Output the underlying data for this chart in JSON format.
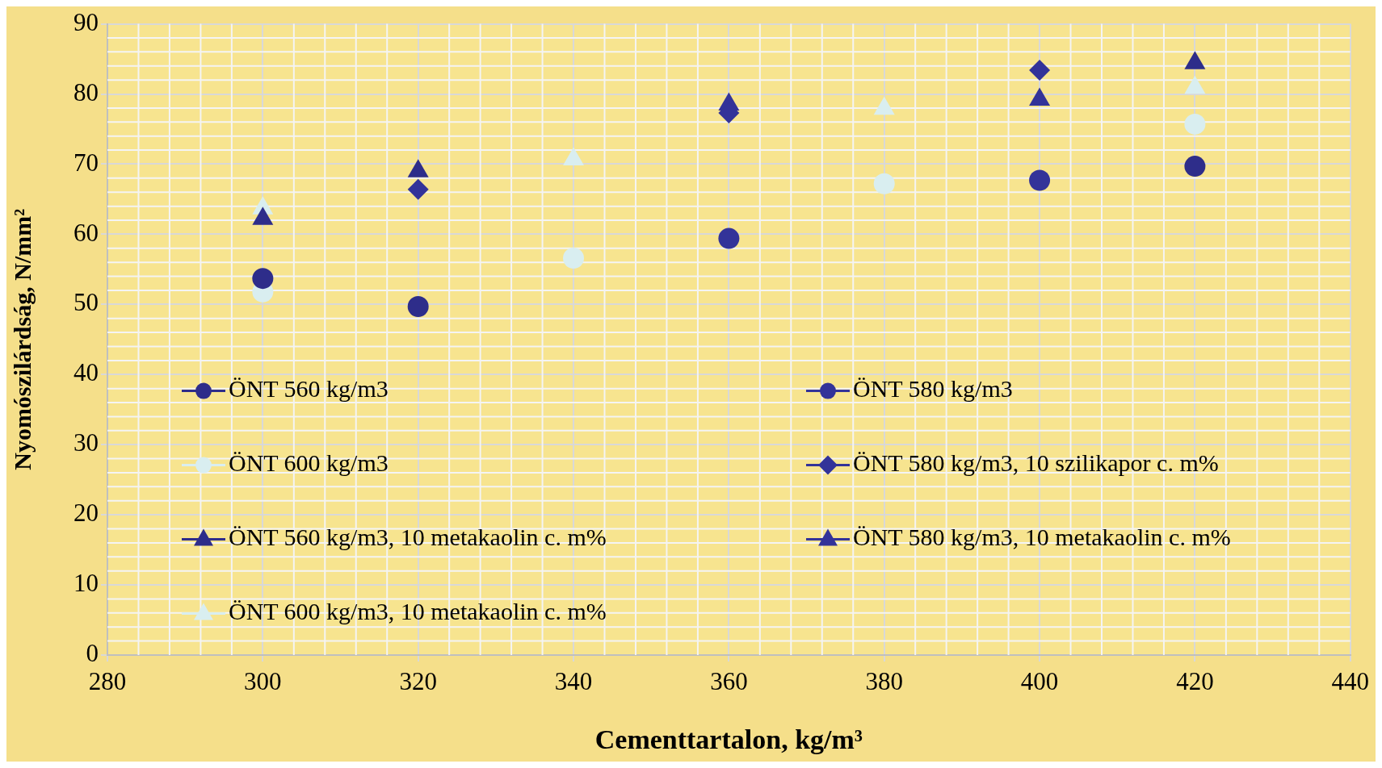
{
  "chart_data": {
    "type": "scatter",
    "xlabel": "Cementtartalon, kg/m³",
    "ylabel": "Nyomószilárdság, N/mm²",
    "xlim": [
      280,
      440
    ],
    "xticks": [
      280,
      300,
      320,
      340,
      360,
      380,
      400,
      420,
      440
    ],
    "ylim": [
      0,
      90
    ],
    "yticks": [
      0,
      10,
      20,
      30,
      40,
      50,
      60,
      70,
      80,
      90
    ],
    "grid": true,
    "legend": "left",
    "series": [
      {
        "name": "ÖNT 560 kg/m3",
        "color": "#2e2d8a",
        "marker": "circle",
        "x": [
          300,
          320,
          420
        ],
        "values": [
          53.7,
          49.7,
          69.7
        ]
      },
      {
        "name": "ÖNT 580 kg/m3",
        "color": "#333399",
        "marker": "circle",
        "x": [
          360,
          400
        ],
        "values": [
          59.4,
          67.7
        ]
      },
      {
        "name": "ÖNT 600 kg/m3",
        "color": "#d9eef0",
        "marker": "circle",
        "x": [
          300,
          340,
          380,
          420
        ],
        "values": [
          51.8,
          56.6,
          67.2,
          75.7
        ]
      },
      {
        "name": "ÖNT 580 kg/m3, 10 szilikapor c. m%",
        "color": "#333399",
        "marker": "diamond",
        "x": [
          320,
          360,
          400
        ],
        "values": [
          66.4,
          77.3,
          83.4
        ]
      },
      {
        "name": "ÖNT 560 kg/m3, 10 metakaolin c. m%",
        "color": "#2e2d8a",
        "marker": "triangle",
        "x": [
          300,
          320,
          420
        ],
        "values": [
          62.2,
          69.0,
          84.4
        ]
      },
      {
        "name": "ÖNT 580 kg/m3, 10 metakaolin c. m%",
        "color": "#333399",
        "marker": "triangle",
        "x": [
          360,
          400
        ],
        "values": [
          78.5,
          79.2
        ]
      },
      {
        "name": "ÖNT 600 kg/m3, 10 metakaolin c. m%",
        "color": "#d9eef0",
        "marker": "triangle",
        "x": [
          300,
          340,
          380,
          420
        ],
        "values": [
          63.7,
          70.7,
          77.9,
          80.9
        ]
      }
    ]
  }
}
